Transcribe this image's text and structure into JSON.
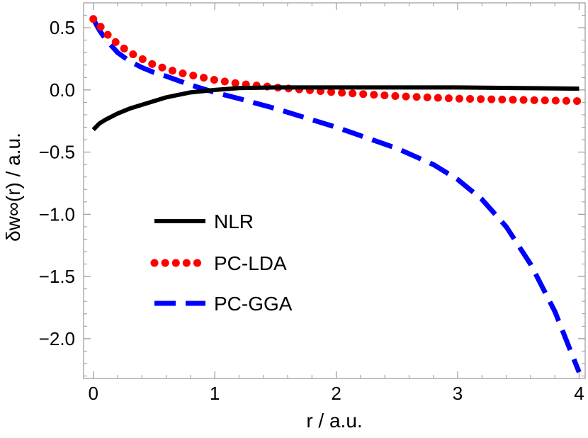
{
  "chart_data": {
    "type": "line",
    "xlabel": "r / a.u.",
    "ylabel": "δw∞(r) / a.u.",
    "xlim": [
      -0.08,
      4.05
    ],
    "ylim": [
      -2.32,
      0.7
    ],
    "xticks": [
      0,
      1,
      2,
      3,
      4
    ],
    "xtick_labels": [
      "0",
      "1",
      "2",
      "3",
      "4"
    ],
    "yticks": [
      0.5,
      0.0,
      -0.5,
      -1.0,
      -1.5,
      -2.0
    ],
    "ytick_labels": [
      "0.5",
      "0.0",
      "−0.5",
      "−1.0",
      "−1.5",
      "−2.0"
    ],
    "grid": false,
    "legend_position": "center-left",
    "series": [
      {
        "name": "NLR",
        "color": "#000000",
        "style": "solid",
        "x": [
          0,
          0.02,
          0.05,
          0.1,
          0.2,
          0.3,
          0.4,
          0.5,
          0.6,
          0.7,
          0.8,
          0.9,
          1.0,
          1.2,
          1.5,
          2.0,
          2.5,
          3.0,
          3.5,
          4.0
        ],
        "y": [
          -0.32,
          -0.3,
          -0.27,
          -0.24,
          -0.19,
          -0.15,
          -0.12,
          -0.09,
          -0.06,
          -0.04,
          -0.02,
          -0.01,
          0.0,
          0.015,
          0.02,
          0.02,
          0.02,
          0.02,
          0.015,
          0.01
        ]
      },
      {
        "name": "PC-LDA",
        "color": "#ff0000",
        "style": "dotted",
        "x": [
          0,
          0.05,
          0.1,
          0.2,
          0.3,
          0.4,
          0.5,
          0.6,
          0.7,
          0.8,
          0.9,
          1.0,
          1.2,
          1.5,
          2.0,
          2.5,
          3.0,
          3.5,
          4.0
        ],
        "y": [
          0.57,
          0.52,
          0.46,
          0.37,
          0.3,
          0.25,
          0.2,
          0.17,
          0.14,
          0.12,
          0.1,
          0.08,
          0.05,
          0.02,
          -0.02,
          -0.05,
          -0.07,
          -0.08,
          -0.09
        ]
      },
      {
        "name": "PC-GGA",
        "color": "#0000ff",
        "style": "dashed",
        "x": [
          0,
          0.05,
          0.1,
          0.2,
          0.3,
          0.4,
          0.5,
          0.6,
          0.8,
          1.0,
          1.2,
          1.5,
          2.0,
          2.5,
          2.8,
          3.0,
          3.2,
          3.4,
          3.6,
          3.8,
          4.0
        ],
        "y": [
          0.57,
          0.48,
          0.41,
          0.3,
          0.23,
          0.18,
          0.14,
          0.11,
          0.04,
          -0.02,
          -0.07,
          -0.15,
          -0.3,
          -0.47,
          -0.6,
          -0.72,
          -0.88,
          -1.1,
          -1.4,
          -1.78,
          -2.27
        ]
      }
    ]
  }
}
